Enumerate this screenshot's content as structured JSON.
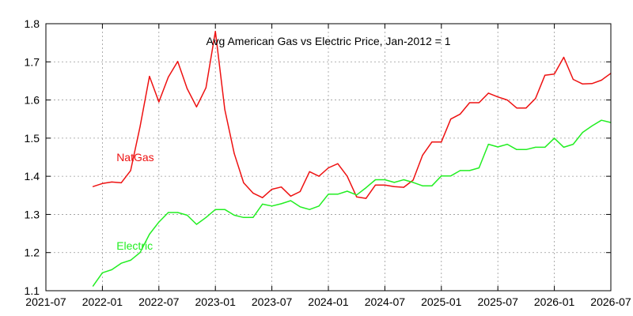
{
  "chart_data": {
    "type": "line",
    "title": "Avg American Gas vs Electric Price, Jan-2012 = 1",
    "xlabel": "",
    "ylabel": "",
    "xlim": [
      "2021-07",
      "2026-07"
    ],
    "ylim": [
      1.1,
      1.8
    ],
    "x_ticks": [
      "2021-07",
      "2022-01",
      "2022-07",
      "2023-01",
      "2023-07",
      "2024-01",
      "2024-07",
      "2025-01",
      "2025-07",
      "2026-01",
      "2026-07"
    ],
    "y_ticks": [
      "1.1",
      "1.2",
      "1.3",
      "1.4",
      "1.5",
      "1.6",
      "1.7",
      "1.8"
    ],
    "grid": true,
    "series": [
      {
        "name": "NatGas",
        "color": "#ee1111",
        "label_anchor": {
          "x": "2022-03",
          "y": 1.45
        },
        "points": [
          [
            "2021-12",
            1.373
          ],
          [
            "2022-01",
            1.381
          ],
          [
            "2022-02",
            1.385
          ],
          [
            "2022-03",
            1.383
          ],
          [
            "2022-04",
            1.415
          ],
          [
            "2022-05",
            1.53
          ],
          [
            "2022-06",
            1.662
          ],
          [
            "2022-07",
            1.595
          ],
          [
            "2022-08",
            1.66
          ],
          [
            "2022-09",
            1.701
          ],
          [
            "2022-10",
            1.63
          ],
          [
            "2022-11",
            1.582
          ],
          [
            "2022-12",
            1.632
          ],
          [
            "2023-01",
            1.78
          ],
          [
            "2023-02",
            1.575
          ],
          [
            "2023-03",
            1.46
          ],
          [
            "2023-04",
            1.383
          ],
          [
            "2023-05",
            1.356
          ],
          [
            "2023-06",
            1.344
          ],
          [
            "2023-07",
            1.366
          ],
          [
            "2023-08",
            1.372
          ],
          [
            "2023-09",
            1.348
          ],
          [
            "2023-10",
            1.36
          ],
          [
            "2023-11",
            1.412
          ],
          [
            "2023-12",
            1.4
          ],
          [
            "2024-01",
            1.422
          ],
          [
            "2024-02",
            1.433
          ],
          [
            "2024-03",
            1.4
          ],
          [
            "2024-04",
            1.346
          ],
          [
            "2024-05",
            1.342
          ],
          [
            "2024-06",
            1.377
          ],
          [
            "2024-07",
            1.377
          ],
          [
            "2024-08",
            1.373
          ],
          [
            "2024-09",
            1.371
          ],
          [
            "2024-10",
            1.39
          ],
          [
            "2024-11",
            1.455
          ],
          [
            "2024-12",
            1.49
          ],
          [
            "2025-01",
            1.49
          ],
          [
            "2025-02",
            1.55
          ],
          [
            "2025-03",
            1.563
          ],
          [
            "2025-04",
            1.593
          ],
          [
            "2025-05",
            1.593
          ],
          [
            "2025-06",
            1.618
          ],
          [
            "2025-07",
            1.608
          ],
          [
            "2025-08",
            1.6
          ],
          [
            "2025-09",
            1.579
          ],
          [
            "2025-10",
            1.579
          ],
          [
            "2025-11",
            1.604
          ],
          [
            "2025-12",
            1.665
          ],
          [
            "2026-01",
            1.668
          ],
          [
            "2026-02",
            1.712
          ],
          [
            "2026-03",
            1.654
          ],
          [
            "2026-04",
            1.642
          ],
          [
            "2026-05",
            1.643
          ],
          [
            "2026-06",
            1.652
          ],
          [
            "2026-07",
            1.67
          ]
        ]
      },
      {
        "name": "Electric",
        "color": "#22ee22",
        "label_anchor": {
          "x": "2022-03",
          "y": 1.218
        },
        "points": [
          [
            "2021-12",
            1.112
          ],
          [
            "2022-01",
            1.147
          ],
          [
            "2022-02",
            1.155
          ],
          [
            "2022-03",
            1.172
          ],
          [
            "2022-04",
            1.18
          ],
          [
            "2022-05",
            1.2
          ],
          [
            "2022-06",
            1.248
          ],
          [
            "2022-07",
            1.28
          ],
          [
            "2022-08",
            1.305
          ],
          [
            "2022-09",
            1.305
          ],
          [
            "2022-10",
            1.298
          ],
          [
            "2022-11",
            1.274
          ],
          [
            "2022-12",
            1.292
          ],
          [
            "2023-01",
            1.313
          ],
          [
            "2023-02",
            1.313
          ],
          [
            "2023-03",
            1.298
          ],
          [
            "2023-04",
            1.292
          ],
          [
            "2023-05",
            1.292
          ],
          [
            "2023-06",
            1.327
          ],
          [
            "2023-07",
            1.322
          ],
          [
            "2023-08",
            1.328
          ],
          [
            "2023-09",
            1.336
          ],
          [
            "2023-10",
            1.32
          ],
          [
            "2023-11",
            1.313
          ],
          [
            "2023-12",
            1.322
          ],
          [
            "2024-01",
            1.353
          ],
          [
            "2024-02",
            1.353
          ],
          [
            "2024-03",
            1.361
          ],
          [
            "2024-04",
            1.351
          ],
          [
            "2024-05",
            1.37
          ],
          [
            "2024-06",
            1.391
          ],
          [
            "2024-07",
            1.391
          ],
          [
            "2024-08",
            1.384
          ],
          [
            "2024-09",
            1.391
          ],
          [
            "2024-10",
            1.384
          ],
          [
            "2024-11",
            1.375
          ],
          [
            "2024-12",
            1.375
          ],
          [
            "2025-01",
            1.401
          ],
          [
            "2025-02",
            1.401
          ],
          [
            "2025-03",
            1.415
          ],
          [
            "2025-04",
            1.415
          ],
          [
            "2025-05",
            1.422
          ],
          [
            "2025-06",
            1.484
          ],
          [
            "2025-07",
            1.477
          ],
          [
            "2025-08",
            1.484
          ],
          [
            "2025-09",
            1.47
          ],
          [
            "2025-10",
            1.47
          ],
          [
            "2025-11",
            1.476
          ],
          [
            "2025-12",
            1.476
          ],
          [
            "2026-01",
            1.5
          ],
          [
            "2026-02",
            1.476
          ],
          [
            "2026-03",
            1.484
          ],
          [
            "2026-04",
            1.515
          ],
          [
            "2026-05",
            1.532
          ],
          [
            "2026-06",
            1.547
          ],
          [
            "2026-07",
            1.541
          ]
        ]
      }
    ]
  }
}
